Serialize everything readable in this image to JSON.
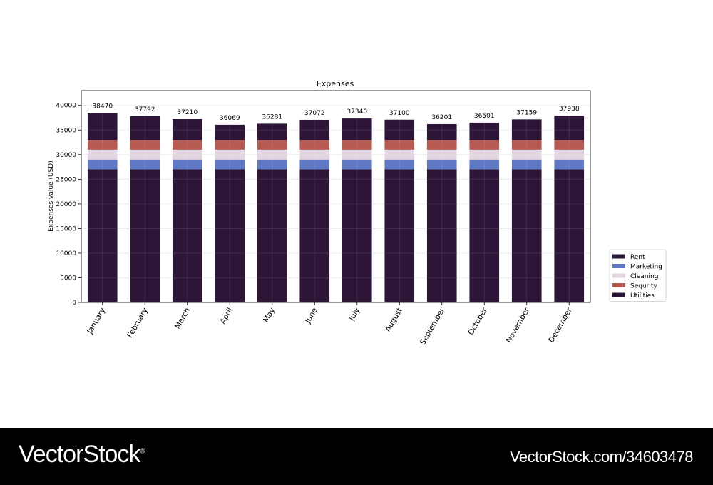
{
  "chart_data": {
    "type": "bar",
    "stacked": true,
    "title": "Expenses",
    "xlabel": "",
    "ylabel": "Expenses value (USD)",
    "ylim": [
      0,
      43000
    ],
    "yticks": [
      0,
      5000,
      10000,
      15000,
      20000,
      25000,
      30000,
      35000,
      40000
    ],
    "grid": true,
    "legend_position": "right",
    "categories": [
      "January",
      "February",
      "March",
      "April",
      "May",
      "June",
      "July",
      "August",
      "September",
      "October",
      "November",
      "December"
    ],
    "series": [
      {
        "name": "Rent",
        "color": "#2d1537",
        "values": [
          27000,
          27000,
          27000,
          27000,
          27000,
          27000,
          27000,
          27000,
          27000,
          27000,
          27000,
          27000
        ]
      },
      {
        "name": "Marketing",
        "color": "#6079c4",
        "values": [
          2000,
          2000,
          2000,
          2000,
          2000,
          2000,
          2000,
          2000,
          2000,
          2000,
          2000,
          2000
        ]
      },
      {
        "name": "Cleaning",
        "color": "#e4d6e1",
        "values": [
          2000,
          2000,
          2000,
          2000,
          2000,
          2000,
          2000,
          2000,
          2000,
          2000,
          2000,
          2000
        ]
      },
      {
        "name": "Sequrity",
        "color": "#b75a51",
        "values": [
          2000,
          2000,
          2000,
          2000,
          2000,
          2000,
          2000,
          2000,
          2000,
          2000,
          2000,
          2000
        ]
      },
      {
        "name": "Utilities",
        "color": "#2d1537",
        "values": [
          5470,
          4792,
          4210,
          3069,
          3281,
          4072,
          4340,
          4100,
          3201,
          3501,
          4159,
          4938
        ]
      }
    ],
    "totals": [
      38470,
      37792,
      37210,
      36069,
      36281,
      37072,
      37340,
      37100,
      36201,
      36501,
      37159,
      37938
    ]
  },
  "footer": {
    "logo": "VectorStock",
    "logo_mark": "®",
    "url": "VectorStock.com/34603478"
  }
}
